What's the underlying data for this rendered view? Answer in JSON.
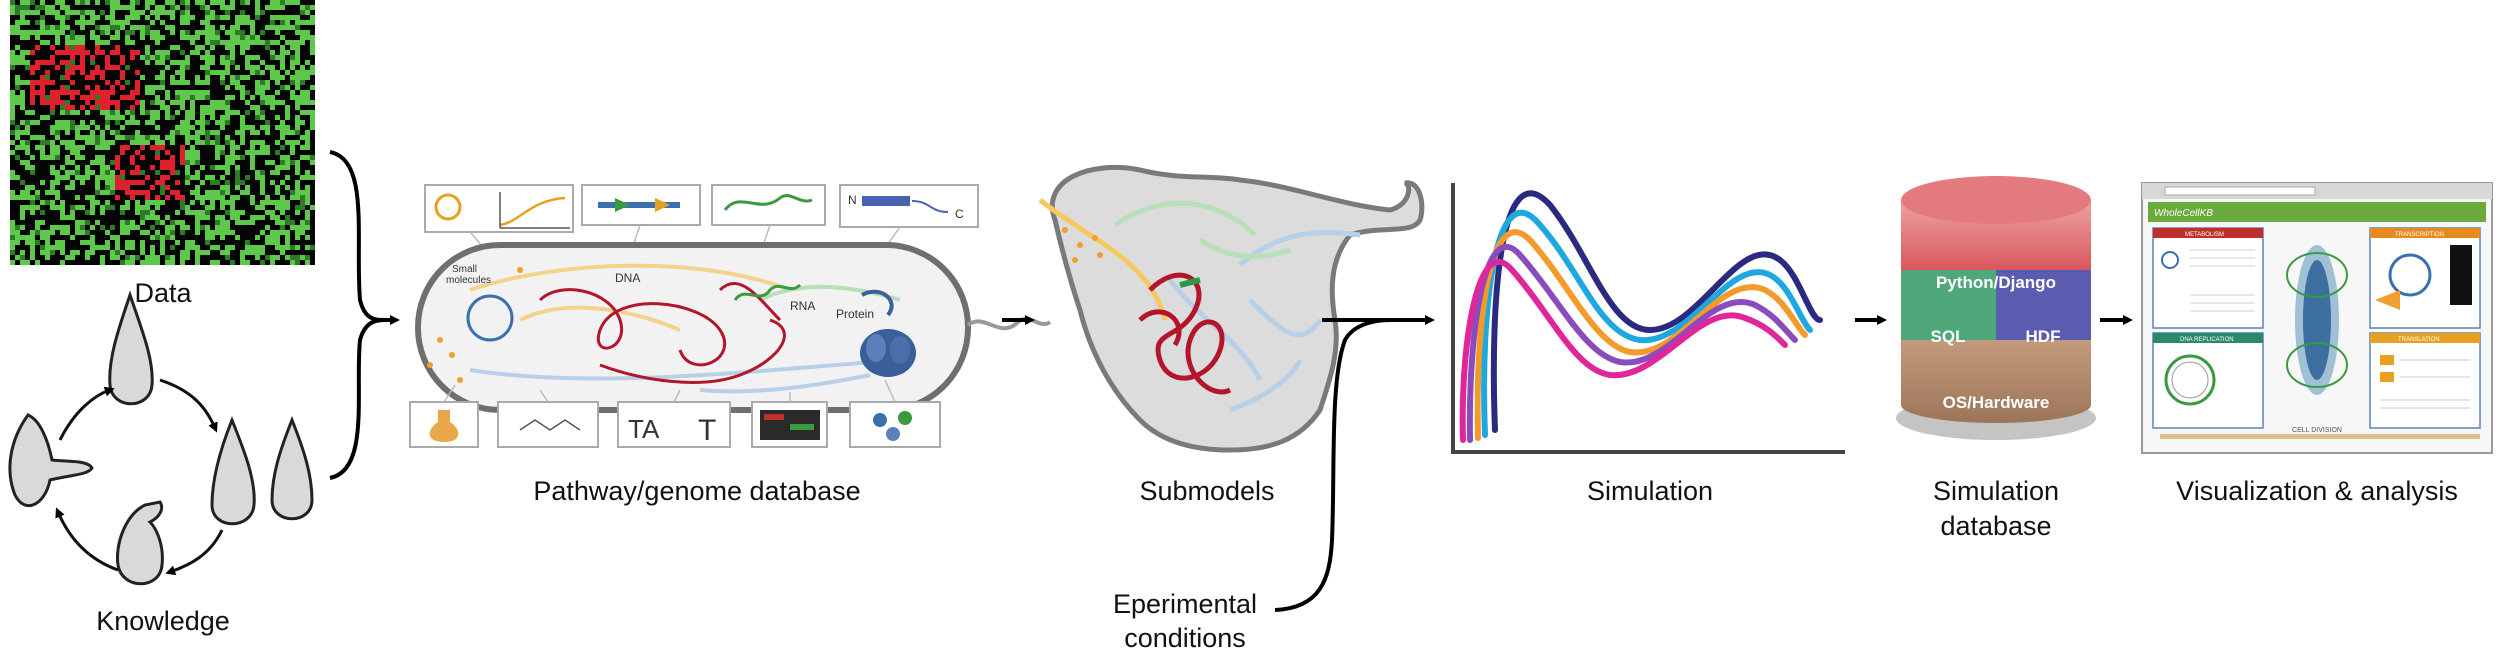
{
  "labels": {
    "data": "Data",
    "knowledge": "Knowledge",
    "pathway_genome_database": "Pathway/genome database",
    "submodels": "Submodels",
    "simulation": "Simulation",
    "simulation_database_line1": "Simulation",
    "simulation_database_line2": "database",
    "visualization_analysis": "Visualization & analysis",
    "experimental_conditions_line1": "Eperimental",
    "experimental_conditions_line2": "conditions"
  },
  "cell_labels": {
    "small_molecules_line1": "Small",
    "small_molecules_line2": "molecules",
    "dna": "DNA",
    "rna": "RNA",
    "protein": "Protein"
  },
  "database_layers": {
    "top": "Python/Django",
    "middle_left": "SQL",
    "middle_right": "HDF",
    "bottom": "OS/Hardware"
  },
  "browser": {
    "app_title": "WholeCellKB",
    "panel_metabolism": "METABOLISM",
    "panel_transcription": "TRANSCRIPTION",
    "panel_dna_replication": "DNA REPLICATION",
    "panel_translation": "TRANSLATION",
    "bottom_label": "CELL DIVISION"
  },
  "colors": {
    "arrow": "#000000",
    "heatmap_green": "#5dc84a",
    "heatmap_red": "#e0202c",
    "db_top": "#d8575c",
    "db_sql": "#4fa77a",
    "db_hdf": "#5b5cb0",
    "db_bottom": "#b08a6e",
    "curve_navy": "#2a2a80",
    "curve_cyan": "#1fa8e0",
    "curve_orange": "#f39a2b",
    "curve_purple": "#8a4bbd",
    "curve_magenta": "#e0269a",
    "browser_header": "#6aaa3c"
  },
  "icons": {
    "knowledge": "cell-shapes-icon",
    "experimental": "curved-arrow-icon"
  }
}
